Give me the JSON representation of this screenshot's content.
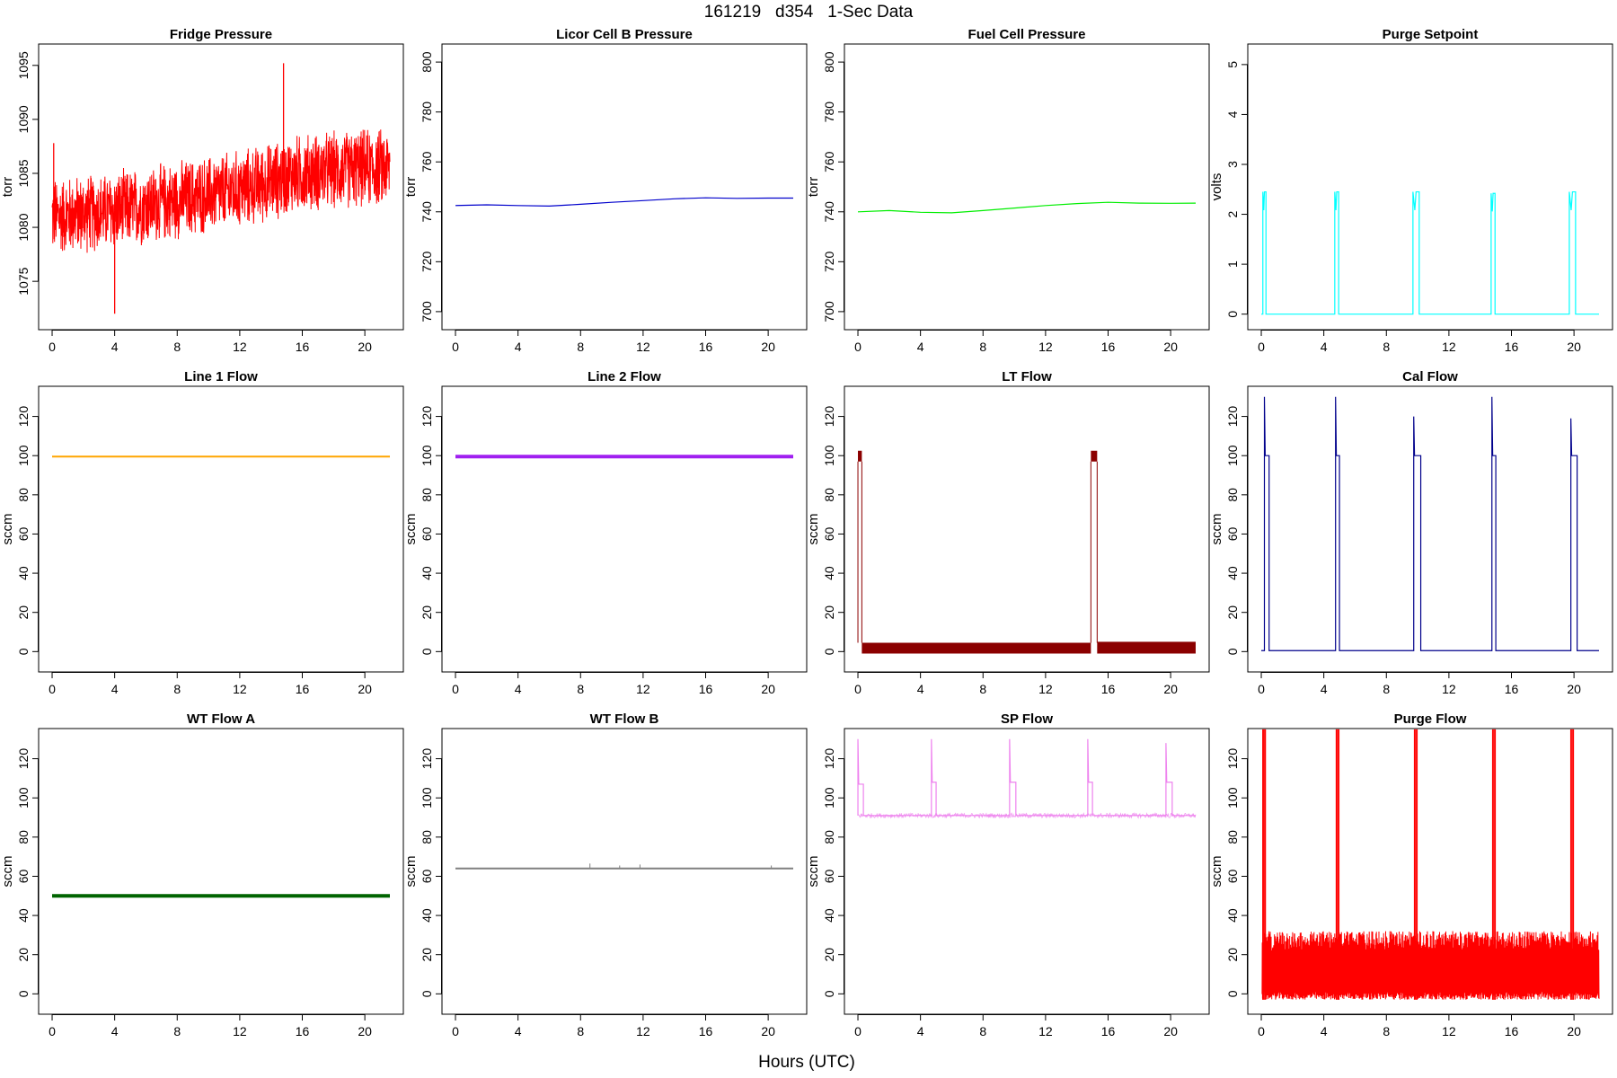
{
  "figure": {
    "title": "161219   d354   1-Sec Data",
    "xlabel": "Hours (UTC)"
  },
  "chart_data": [
    {
      "type": "line",
      "title": "Fridge Pressure",
      "ylabel": "torr",
      "color": "#ff0000",
      "xlim": [
        0,
        21.6
      ],
      "ylim": [
        1071.5,
        1096
      ],
      "xticks": [
        0,
        4,
        8,
        12,
        16,
        20
      ],
      "yticks": [
        1075,
        1080,
        1085,
        1090,
        1095
      ],
      "render": "noise-band",
      "series": [
        {
          "x": [
            0,
            4,
            8,
            12,
            14.8,
            15.2,
            16,
            20,
            21.6
          ],
          "values": [
            1081,
            1081.5,
            1082.5,
            1083.5,
            1084.5,
            1084.8,
            1085,
            1085.5,
            1085.5
          ],
          "spread": 4
        }
      ],
      "spikes": [
        {
          "x": 14.8,
          "y": 1095.2
        },
        {
          "x": 4,
          "y": 1072
        },
        {
          "x": 0.1,
          "y": 1087.8
        }
      ]
    },
    {
      "type": "line",
      "title": "Licor Cell B Pressure",
      "ylabel": "torr",
      "color": "#0000cc",
      "xlim": [
        0,
        21.6
      ],
      "ylim": [
        697,
        803
      ],
      "xticks": [
        0,
        4,
        8,
        12,
        16,
        20
      ],
      "yticks": [
        700,
        720,
        740,
        760,
        780,
        800
      ],
      "series": [
        {
          "x": [
            0,
            2,
            4,
            6,
            8,
            10,
            12,
            14,
            16,
            18,
            20,
            21.6
          ],
          "values": [
            742.5,
            742.8,
            742.5,
            742.3,
            743,
            743.8,
            744.5,
            745.2,
            745.6,
            745.4,
            745.5,
            745.5
          ]
        }
      ]
    },
    {
      "type": "line",
      "title": "Fuel Cell Pressure",
      "ylabel": "torr",
      "color": "#00ee00",
      "xlim": [
        0,
        21.6
      ],
      "ylim": [
        697,
        803
      ],
      "xticks": [
        0,
        4,
        8,
        12,
        16,
        20
      ],
      "yticks": [
        700,
        720,
        740,
        760,
        780,
        800
      ],
      "series": [
        {
          "x": [
            0,
            2,
            4,
            6,
            8,
            10,
            12,
            14,
            16,
            18,
            20,
            21.6
          ],
          "values": [
            740,
            740.5,
            739.8,
            739.6,
            740.5,
            741.5,
            742.5,
            743.3,
            743.8,
            743.5,
            743.4,
            743.5
          ]
        }
      ]
    },
    {
      "type": "line",
      "title": "Purge Setpoint",
      "ylabel": "volts",
      "color": "#00ffff",
      "xlim": [
        0,
        21.6
      ],
      "ylim": [
        -0.1,
        5.2
      ],
      "xticks": [
        0,
        4,
        8,
        12,
        16,
        20
      ],
      "yticks": [
        0,
        1,
        2,
        3,
        4,
        5
      ],
      "render": "pulses",
      "series": [
        {
          "base": 0,
          "pulses": [
            {
              "start": 0.1,
              "end": 0.3,
              "level": 2.45
            },
            {
              "start": 4.7,
              "end": 4.95,
              "level": 2.45
            },
            {
              "start": 9.7,
              "end": 10.1,
              "level": 2.45
            },
            {
              "start": 14.7,
              "end": 14.95,
              "level": 2.42
            },
            {
              "start": 19.7,
              "end": 20.1,
              "level": 2.45
            }
          ],
          "x_end": 21.6
        }
      ]
    },
    {
      "type": "line",
      "title": "Line 1 Flow",
      "ylabel": "sccm",
      "color": "#ffa500",
      "xlim": [
        0,
        21.6
      ],
      "ylim": [
        -5,
        130
      ],
      "xticks": [
        0,
        4,
        8,
        12,
        16,
        20
      ],
      "yticks": [
        0,
        20,
        40,
        60,
        80,
        100,
        120
      ],
      "series": [
        {
          "x": [
            0,
            21.6
          ],
          "values": [
            99.5,
            99.5
          ]
        }
      ],
      "stroke": 2
    },
    {
      "type": "line",
      "title": "Line 2 Flow",
      "ylabel": "sccm",
      "color": "#a020f0",
      "xlim": [
        0,
        21.6
      ],
      "ylim": [
        -5,
        130
      ],
      "xticks": [
        0,
        4,
        8,
        12,
        16,
        20
      ],
      "yticks": [
        0,
        20,
        40,
        60,
        80,
        100,
        120
      ],
      "series": [
        {
          "x": [
            0,
            21.6
          ],
          "values": [
            99.5,
            99.5
          ]
        }
      ],
      "stroke": 4
    },
    {
      "type": "line",
      "title": "LT Flow",
      "ylabel": "sccm",
      "color": "#8b0000",
      "xlim": [
        0,
        21.6
      ],
      "ylim": [
        -5,
        130
      ],
      "xticks": [
        0,
        4,
        8,
        12,
        16,
        20
      ],
      "yticks": [
        0,
        20,
        40,
        60,
        80,
        100,
        120
      ],
      "render": "lt-bands",
      "series": [
        {
          "high": [
            {
              "start": 0,
              "end": 0.25,
              "low": 97,
              "high": 102.5
            },
            {
              "start": 14.9,
              "end": 15.3,
              "low": 97,
              "high": 102.5
            }
          ],
          "base_low": -1,
          "base_high": 4.5,
          "x_end": 21.6
        }
      ]
    },
    {
      "type": "line",
      "title": "Cal Flow",
      "ylabel": "sccm",
      "color": "#00008b",
      "xlim": [
        0,
        21.6
      ],
      "ylim": [
        -5,
        130
      ],
      "xticks": [
        0,
        4,
        8,
        12,
        16,
        20
      ],
      "yticks": [
        0,
        20,
        40,
        60,
        80,
        100,
        120
      ],
      "render": "pulses",
      "series": [
        {
          "base": 0.5,
          "pulses": [
            {
              "start": 0.2,
              "end": 0.5,
              "level": 100,
              "peak": 130
            },
            {
              "start": 4.75,
              "end": 5.0,
              "level": 100,
              "peak": 130
            },
            {
              "start": 9.75,
              "end": 10.2,
              "level": 100,
              "peak": 120
            },
            {
              "start": 14.75,
              "end": 15.0,
              "level": 100,
              "peak": 130
            },
            {
              "start": 19.8,
              "end": 20.2,
              "level": 100,
              "peak": 119
            }
          ],
          "x_end": 21.6
        }
      ]
    },
    {
      "type": "line",
      "title": "WT Flow A",
      "ylabel": "sccm",
      "color": "#006400",
      "xlim": [
        0,
        21.6
      ],
      "ylim": [
        -5,
        130
      ],
      "xticks": [
        0,
        4,
        8,
        12,
        16,
        20
      ],
      "yticks": [
        0,
        20,
        40,
        60,
        80,
        100,
        120
      ],
      "series": [
        {
          "x": [
            0,
            21.6
          ],
          "values": [
            50,
            50
          ]
        }
      ],
      "stroke": 4
    },
    {
      "type": "line",
      "title": "WT Flow B",
      "ylabel": "sccm",
      "color": "#808080",
      "xlim": [
        0,
        21.6
      ],
      "ylim": [
        -5,
        130
      ],
      "xticks": [
        0,
        4,
        8,
        12,
        16,
        20
      ],
      "yticks": [
        0,
        20,
        40,
        60,
        80,
        100,
        120
      ],
      "series": [
        {
          "x": [
            0,
            21.6
          ],
          "values": [
            64,
            64
          ]
        }
      ],
      "stroke": 2,
      "spikes": [
        {
          "x": 8.6,
          "y": 66.5
        },
        {
          "x": 11.8,
          "y": 66
        },
        {
          "x": 10.5,
          "y": 65.5
        },
        {
          "x": 20.2,
          "y": 65.5
        }
      ]
    },
    {
      "type": "line",
      "title": "SP Flow",
      "ylabel": "sccm",
      "color": "#ee82ee",
      "xlim": [
        0,
        21.6
      ],
      "ylim": [
        -5,
        130
      ],
      "xticks": [
        0,
        4,
        8,
        12,
        16,
        20
      ],
      "yticks": [
        0,
        20,
        40,
        60,
        80,
        100,
        120
      ],
      "render": "pulses",
      "series": [
        {
          "base": 91,
          "pulses": [
            {
              "start": 0,
              "end": 0.35,
              "level": 107,
              "peak": 130
            },
            {
              "start": 4.7,
              "end": 5.0,
              "level": 108,
              "peak": 130
            },
            {
              "start": 9.7,
              "end": 10.1,
              "level": 108,
              "peak": 130
            },
            {
              "start": 14.7,
              "end": 15.0,
              "level": 108,
              "peak": 130
            },
            {
              "start": 19.7,
              "end": 20.1,
              "level": 108,
              "peak": 128
            }
          ],
          "x_end": 21.6
        }
      ]
    },
    {
      "type": "line",
      "title": "Purge Flow",
      "ylabel": "sccm",
      "color": "#ff0000",
      "xlim": [
        0,
        21.6
      ],
      "ylim": [
        -5,
        130
      ],
      "xticks": [
        0,
        4,
        8,
        12,
        16,
        20
      ],
      "yticks": [
        0,
        20,
        40,
        60,
        80,
        100,
        120
      ],
      "render": "purge",
      "series": [
        {
          "band_low": -3,
          "band_high": 32,
          "bursts": [
            0.1,
            4.8,
            9.8,
            14.8,
            19.8
          ],
          "x_end": 21.6
        }
      ]
    }
  ]
}
